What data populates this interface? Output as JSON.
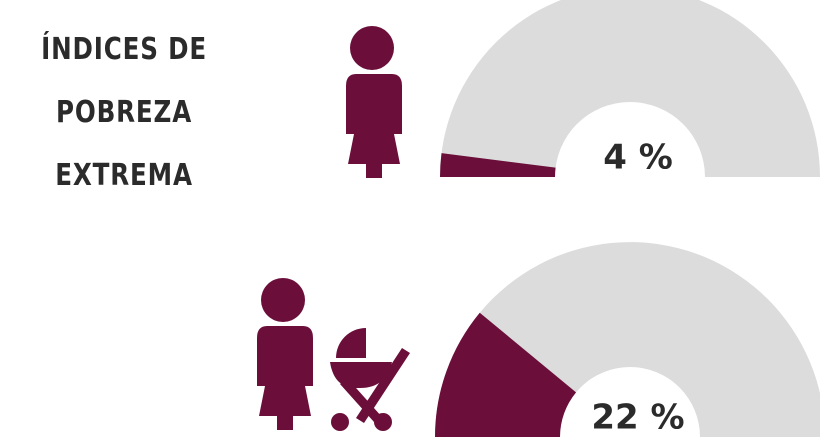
{
  "chart_data": [
    {
      "type": "gauge",
      "title": "ÍNDICES DE POBREZA EXTREMA",
      "values": [
        4
      ],
      "value_labels": [
        "4 %"
      ],
      "color": "#6b0f3a",
      "track_color": "#dcdcdc",
      "ylim": [
        0,
        100
      ]
    },
    {
      "type": "gauge",
      "values": [
        22
      ],
      "value_labels": [
        "22 %"
      ],
      "color": "#6b0f3a",
      "track_color": "#dcdcdc",
      "ylim": [
        0,
        100
      ]
    }
  ]
}
